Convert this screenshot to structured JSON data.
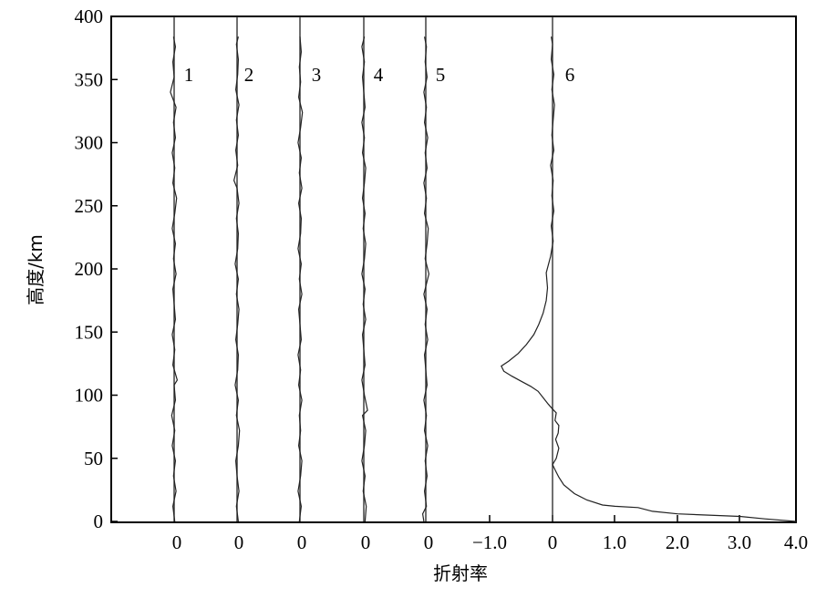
{
  "chart_data": {
    "type": "line",
    "xlabel": "折射率",
    "ylabel": "高度/km",
    "ylim": [
      0,
      400
    ],
    "yticks": [
      "0",
      "50",
      "100",
      "150",
      "200",
      "250",
      "300",
      "350",
      "400"
    ],
    "yticks_values": [
      0,
      50,
      100,
      150,
      200,
      250,
      300,
      350,
      400
    ],
    "xtick_labels": [
      "0",
      "0",
      "0",
      "0",
      "0",
      "−1.0",
      "0",
      "1.0",
      "2.0",
      "3.0",
      "4.0"
    ],
    "panel6_xlim": [
      -1.3,
      4.0
    ],
    "grid": false,
    "series": [
      {
        "name": "1",
        "points": [
          [
            0,
            0.01
          ],
          [
            12,
            -0.02
          ],
          [
            24,
            0.03
          ],
          [
            36,
            -0.01
          ],
          [
            48,
            0.02
          ],
          [
            60,
            -0.03
          ],
          [
            72,
            0.01
          ],
          [
            84,
            -0.04
          ],
          [
            96,
            0.02
          ],
          [
            108,
            0.0
          ],
          [
            112,
            0.05
          ],
          [
            124,
            -0.02
          ],
          [
            136,
            0.01
          ],
          [
            148,
            -0.03
          ],
          [
            160,
            0.02
          ],
          [
            172,
            0.0
          ],
          [
            184,
            -0.02
          ],
          [
            196,
            0.03
          ],
          [
            208,
            -0.01
          ],
          [
            220,
            0.02
          ],
          [
            232,
            -0.03
          ],
          [
            244,
            0.01
          ],
          [
            256,
            0.04
          ],
          [
            268,
            -0.02
          ],
          [
            280,
            0.01
          ],
          [
            292,
            -0.03
          ],
          [
            304,
            0.02
          ],
          [
            316,
            -0.01
          ],
          [
            328,
            0.03
          ],
          [
            340,
            -0.06
          ],
          [
            352,
            0.0
          ],
          [
            364,
            -0.02
          ],
          [
            376,
            0.02
          ],
          [
            384,
            -0.01
          ]
        ]
      },
      {
        "name": "2",
        "points": [
          [
            0,
            0.02
          ],
          [
            12,
            -0.01
          ],
          [
            24,
            0.03
          ],
          [
            36,
            0.0
          ],
          [
            48,
            -0.02
          ],
          [
            60,
            0.02
          ],
          [
            72,
            0.04
          ],
          [
            84,
            -0.01
          ],
          [
            96,
            0.02
          ],
          [
            108,
            -0.03
          ],
          [
            120,
            0.01
          ],
          [
            132,
            0.02
          ],
          [
            144,
            -0.02
          ],
          [
            156,
            0.01
          ],
          [
            168,
            0.03
          ],
          [
            180,
            -0.01
          ],
          [
            192,
            0.02
          ],
          [
            204,
            -0.03
          ],
          [
            216,
            0.01
          ],
          [
            228,
            0.02
          ],
          [
            240,
            -0.01
          ],
          [
            252,
            0.03
          ],
          [
            264,
            0.0
          ],
          [
            270,
            -0.05
          ],
          [
            282,
            0.01
          ],
          [
            294,
            -0.02
          ],
          [
            306,
            0.02
          ],
          [
            318,
            -0.01
          ],
          [
            330,
            0.03
          ],
          [
            342,
            -0.02
          ],
          [
            354,
            0.01
          ],
          [
            366,
            0.02
          ],
          [
            378,
            -0.01
          ],
          [
            384,
            0.02
          ]
        ]
      },
      {
        "name": "3",
        "points": [
          [
            0,
            -0.01
          ],
          [
            12,
            0.02
          ],
          [
            24,
            -0.03
          ],
          [
            36,
            0.01
          ],
          [
            48,
            0.03
          ],
          [
            60,
            -0.02
          ],
          [
            72,
            0.01
          ],
          [
            84,
            -0.01
          ],
          [
            96,
            0.03
          ],
          [
            108,
            -0.02
          ],
          [
            120,
            0.01
          ],
          [
            132,
            -0.03
          ],
          [
            144,
            0.02
          ],
          [
            156,
            0.0
          ],
          [
            168,
            -0.02
          ],
          [
            180,
            0.03
          ],
          [
            192,
            -0.01
          ],
          [
            204,
            0.02
          ],
          [
            216,
            -0.03
          ],
          [
            228,
            0.01
          ],
          [
            240,
            0.02
          ],
          [
            252,
            -0.02
          ],
          [
            264,
            0.03
          ],
          [
            276,
            -0.01
          ],
          [
            288,
            0.02
          ],
          [
            300,
            -0.03
          ],
          [
            312,
            0.01
          ],
          [
            324,
            0.04
          ],
          [
            336,
            -0.02
          ],
          [
            348,
            0.01
          ],
          [
            360,
            -0.01
          ],
          [
            372,
            0.02
          ],
          [
            384,
            0.0
          ]
        ]
      },
      {
        "name": "4",
        "points": [
          [
            0,
            0.02
          ],
          [
            12,
            0.04
          ],
          [
            24,
            -0.01
          ],
          [
            36,
            0.02
          ],
          [
            48,
            -0.03
          ],
          [
            60,
            0.01
          ],
          [
            72,
            0.03
          ],
          [
            84,
            -0.02
          ],
          [
            88,
            0.06
          ],
          [
            100,
            0.01
          ],
          [
            112,
            -0.03
          ],
          [
            124,
            0.02
          ],
          [
            136,
            0.0
          ],
          [
            148,
            -0.02
          ],
          [
            160,
            0.03
          ],
          [
            172,
            -0.01
          ],
          [
            184,
            0.02
          ],
          [
            196,
            -0.03
          ],
          [
            208,
            0.01
          ],
          [
            220,
            0.03
          ],
          [
            232,
            -0.01
          ],
          [
            244,
            0.02
          ],
          [
            256,
            -0.02
          ],
          [
            268,
            0.01
          ],
          [
            280,
            0.03
          ],
          [
            292,
            -0.02
          ],
          [
            304,
            0.01
          ],
          [
            316,
            -0.03
          ],
          [
            328,
            0.02
          ],
          [
            340,
            0.0
          ],
          [
            352,
            -0.02
          ],
          [
            364,
            0.01
          ],
          [
            376,
            -0.03
          ],
          [
            384,
            0.01
          ]
        ]
      },
      {
        "name": "5",
        "points": [
          [
            0,
            -0.03
          ],
          [
            6,
            -0.05
          ],
          [
            12,
            0.01
          ],
          [
            24,
            -0.02
          ],
          [
            36,
            0.02
          ],
          [
            48,
            -0.01
          ],
          [
            60,
            0.03
          ],
          [
            72,
            -0.02
          ],
          [
            84,
            0.01
          ],
          [
            96,
            -0.03
          ],
          [
            108,
            0.02
          ],
          [
            120,
            0.0
          ],
          [
            132,
            -0.02
          ],
          [
            144,
            0.03
          ],
          [
            156,
            -0.01
          ],
          [
            168,
            0.02
          ],
          [
            180,
            -0.03
          ],
          [
            196,
            0.05
          ],
          [
            208,
            -0.01
          ],
          [
            220,
            0.02
          ],
          [
            232,
            0.04
          ],
          [
            244,
            -0.02
          ],
          [
            256,
            0.01
          ],
          [
            268,
            -0.03
          ],
          [
            280,
            0.02
          ],
          [
            292,
            -0.01
          ],
          [
            304,
            0.03
          ],
          [
            316,
            -0.02
          ],
          [
            328,
            0.01
          ],
          [
            340,
            -0.03
          ],
          [
            352,
            0.02
          ],
          [
            364,
            -0.01
          ],
          [
            376,
            0.01
          ],
          [
            384,
            -0.02
          ]
        ]
      },
      {
        "name": "6",
        "points": [
          [
            0,
            3.9
          ],
          [
            2,
            3.4
          ],
          [
            4,
            3.0
          ],
          [
            6,
            2.0
          ],
          [
            8,
            1.6
          ],
          [
            11,
            1.37
          ],
          [
            12,
            1.0
          ],
          [
            13,
            0.8
          ],
          [
            17,
            0.55
          ],
          [
            22,
            0.35
          ],
          [
            29,
            0.18
          ],
          [
            35,
            0.1
          ],
          [
            40,
            0.05
          ],
          [
            45,
            0.0
          ],
          [
            50,
            0.06
          ],
          [
            58,
            0.1
          ],
          [
            65,
            0.05
          ],
          [
            70,
            0.09
          ],
          [
            76,
            0.1
          ],
          [
            80,
            0.04
          ],
          [
            86,
            0.06
          ],
          [
            89,
            0.0
          ],
          [
            93,
            -0.07
          ],
          [
            98,
            -0.15
          ],
          [
            103,
            -0.23
          ],
          [
            107,
            -0.35
          ],
          [
            111,
            -0.5
          ],
          [
            115,
            -0.65
          ],
          [
            119,
            -0.78
          ],
          [
            123,
            -0.82
          ],
          [
            127,
            -0.7
          ],
          [
            133,
            -0.55
          ],
          [
            140,
            -0.42
          ],
          [
            148,
            -0.3
          ],
          [
            156,
            -0.22
          ],
          [
            165,
            -0.15
          ],
          [
            175,
            -0.1
          ],
          [
            185,
            -0.08
          ],
          [
            197,
            -0.1
          ],
          [
            210,
            -0.03
          ],
          [
            222,
            0.01
          ],
          [
            234,
            -0.02
          ],
          [
            246,
            0.02
          ],
          [
            258,
            -0.01
          ],
          [
            270,
            0.01
          ],
          [
            282,
            -0.03
          ],
          [
            294,
            0.02
          ],
          [
            306,
            -0.01
          ],
          [
            318,
            0.01
          ],
          [
            330,
            0.03
          ],
          [
            342,
            -0.01
          ],
          [
            354,
            0.02
          ],
          [
            366,
            -0.02
          ],
          [
            378,
            0.0
          ],
          [
            384,
            -0.02
          ]
        ]
      }
    ]
  }
}
